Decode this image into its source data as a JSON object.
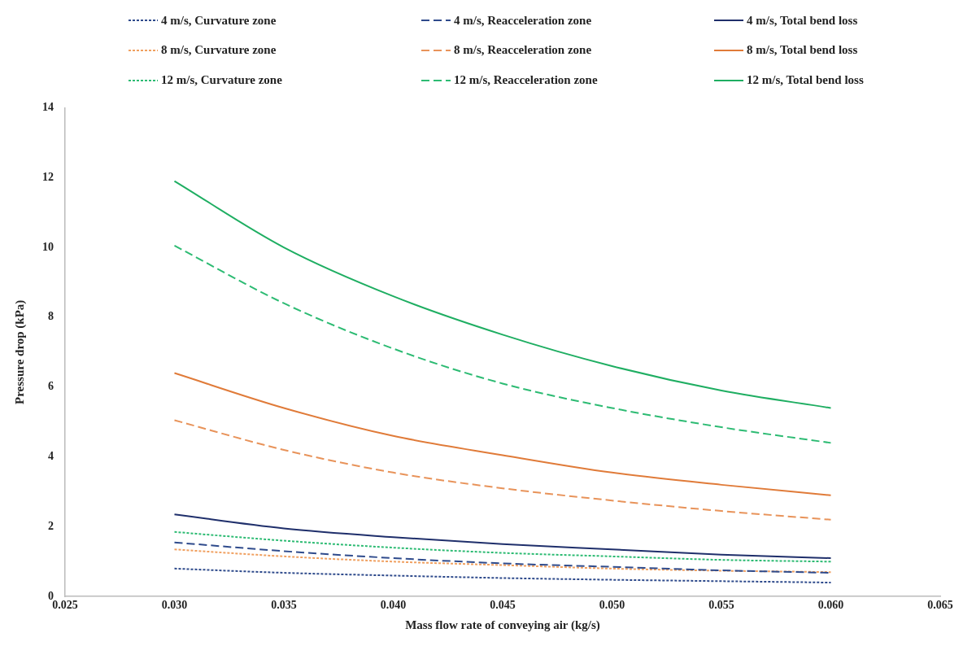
{
  "chart_data": {
    "type": "line",
    "xlabel": "Mass flow rate of conveying air (kg/s)",
    "ylabel": "Pressure drop (kPa)",
    "x": [
      0.03,
      0.035,
      0.04,
      0.045,
      0.05,
      0.055,
      0.06
    ],
    "series": [
      {
        "name": "4 m/s, Curvature zone",
        "color": "#2f4b8c",
        "line_style": "dotted",
        "values": [
          0.8,
          0.68,
          0.6,
          0.53,
          0.48,
          0.44,
          0.4
        ]
      },
      {
        "name": "4 m/s, Reacceleration zone",
        "color": "#2f4b8c",
        "line_style": "dashed",
        "values": [
          1.55,
          1.3,
          1.1,
          0.95,
          0.85,
          0.75,
          0.68
        ]
      },
      {
        "name": "4 m/s, Total bend loss",
        "color": "#1f2f6b",
        "line_style": "solid",
        "values": [
          2.35,
          1.95,
          1.7,
          1.5,
          1.35,
          1.2,
          1.1
        ]
      },
      {
        "name": "8 m/s, Curvature zone",
        "color": "#f0a060",
        "line_style": "dotted",
        "values": [
          1.35,
          1.15,
          1.0,
          0.9,
          0.8,
          0.74,
          0.7
        ]
      },
      {
        "name": "8 m/s, Reacceleration zone",
        "color": "#e8935a",
        "line_style": "dashed",
        "values": [
          5.05,
          4.2,
          3.55,
          3.1,
          2.75,
          2.45,
          2.2
        ]
      },
      {
        "name": "8 m/s, Total bend loss",
        "color": "#e07b39",
        "line_style": "solid",
        "values": [
          6.4,
          5.4,
          4.6,
          4.05,
          3.55,
          3.2,
          2.9
        ]
      },
      {
        "name": "12 m/s, Curvature zone",
        "color": "#2dbb73",
        "line_style": "dotted",
        "values": [
          1.85,
          1.6,
          1.4,
          1.25,
          1.15,
          1.05,
          1.0
        ]
      },
      {
        "name": "12 m/s, Reacceleration zone",
        "color": "#2dbb73",
        "line_style": "dashed",
        "values": [
          10.05,
          8.4,
          7.1,
          6.1,
          5.4,
          4.85,
          4.4
        ]
      },
      {
        "name": "12 m/s, Total bend loss",
        "color": "#1fae62",
        "line_style": "solid",
        "values": [
          11.9,
          10.0,
          8.6,
          7.5,
          6.6,
          5.9,
          5.4
        ]
      }
    ],
    "xlim": [
      0.025,
      0.065
    ],
    "xticks": [
      {
        "value": 0.025,
        "label": "0.025"
      },
      {
        "value": 0.03,
        "label": "0.030"
      },
      {
        "value": 0.035,
        "label": "0.035"
      },
      {
        "value": 0.04,
        "label": "0.040"
      },
      {
        "value": 0.045,
        "label": "0.045"
      },
      {
        "value": 0.05,
        "label": "0.050"
      },
      {
        "value": 0.055,
        "label": "0.055"
      },
      {
        "value": 0.06,
        "label": "0.060"
      },
      {
        "value": 0.065,
        "label": "0.065"
      }
    ],
    "ylim": [
      0,
      14
    ],
    "yticks": [
      0,
      2,
      4,
      6,
      8,
      10,
      12,
      14
    ],
    "grid": false,
    "legend": "top",
    "marker": "none"
  }
}
